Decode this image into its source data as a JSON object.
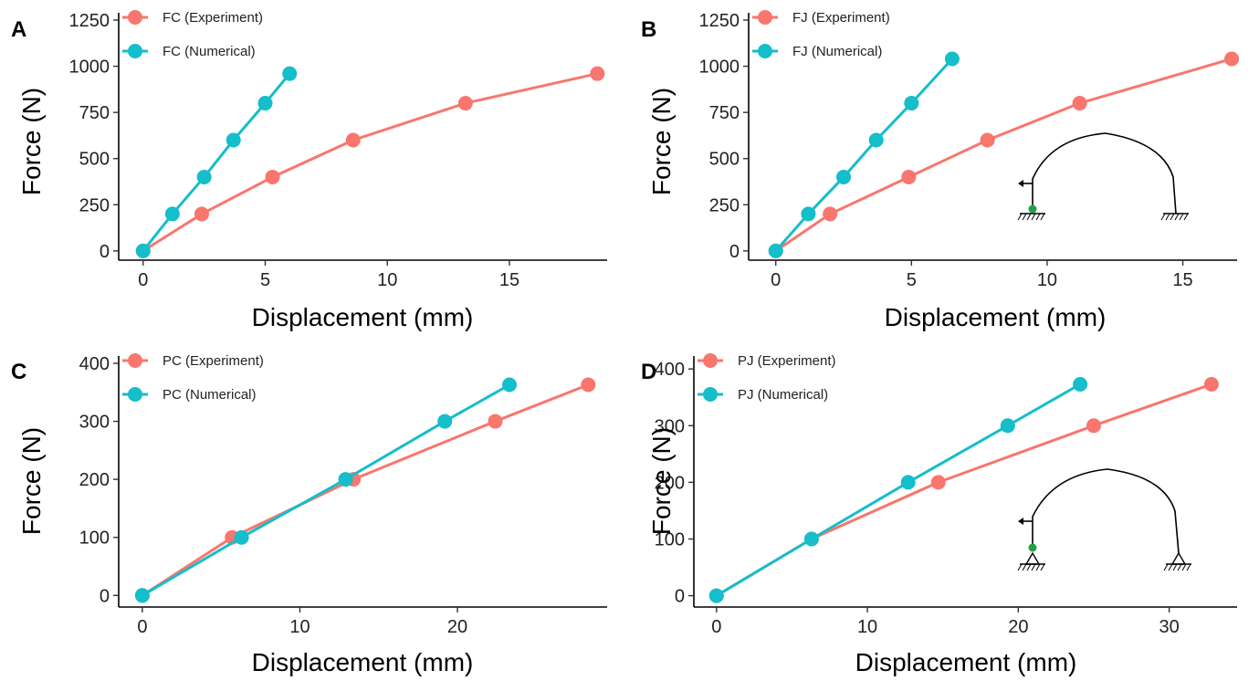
{
  "colors": {
    "experiment": "#F8766D",
    "numerical": "#14BECA",
    "axis": "#000000",
    "support_node": "#22A045"
  },
  "chart_data": [
    {
      "type": "line",
      "panel": "A",
      "xlabel": "Displacement (mm)",
      "ylabel": "Force (N)",
      "xlim": [
        -1,
        19
      ],
      "ylim": [
        -50,
        1250
      ],
      "xticks": [
        0,
        5,
        10,
        15
      ],
      "yticks": [
        0,
        250,
        500,
        750,
        1000,
        1250
      ],
      "legend_position": "top-left",
      "inset_icon": "",
      "series": [
        {
          "name": "FC (Experiment)",
          "color_key": "experiment",
          "x": [
            0,
            2.4,
            5.3,
            8.6,
            13.2,
            18.6
          ],
          "y": [
            0,
            200,
            400,
            600,
            800,
            960
          ]
        },
        {
          "name": "FC (Numerical)",
          "color_key": "numerical",
          "x": [
            0,
            1.2,
            2.5,
            3.7,
            5.0,
            6.0
          ],
          "y": [
            0,
            200,
            400,
            600,
            800,
            960
          ]
        }
      ]
    },
    {
      "type": "line",
      "panel": "B",
      "xlabel": "Displacement (mm)",
      "ylabel": "Force (N)",
      "xlim": [
        -1,
        17
      ],
      "ylim": [
        -50,
        1250
      ],
      "xticks": [
        0,
        5,
        10,
        15
      ],
      "yticks": [
        0,
        250,
        500,
        750,
        1000,
        1250
      ],
      "legend_position": "top-left",
      "inset_icon": "fixed-arch-icon",
      "series": [
        {
          "name": "FJ (Experiment)",
          "color_key": "experiment",
          "x": [
            0,
            2.0,
            4.9,
            7.8,
            11.2,
            16.8
          ],
          "y": [
            0,
            200,
            400,
            600,
            800,
            1040
          ]
        },
        {
          "name": "FJ (Numerical)",
          "color_key": "numerical",
          "x": [
            0,
            1.2,
            2.5,
            3.7,
            5.0,
            6.5
          ],
          "y": [
            0,
            200,
            400,
            600,
            800,
            1040
          ]
        }
      ]
    },
    {
      "type": "line",
      "panel": "C",
      "xlabel": "Displacement (mm)",
      "ylabel": "Force (N)",
      "xlim": [
        -1.5,
        29.5
      ],
      "ylim": [
        -20,
        400
      ],
      "xticks": [
        0,
        10,
        20
      ],
      "yticks": [
        0,
        100,
        200,
        300,
        400
      ],
      "legend_position": "top-left",
      "inset_icon": "",
      "series": [
        {
          "name": "PC (Experiment)",
          "color_key": "experiment",
          "x": [
            0,
            5.7,
            13.4,
            22.4,
            28.3
          ],
          "y": [
            0,
            100,
            200,
            300,
            363
          ]
        },
        {
          "name": "PC (Numerical)",
          "color_key": "numerical",
          "x": [
            0,
            6.3,
            12.9,
            19.2,
            23.3
          ],
          "y": [
            0,
            100,
            200,
            300,
            363
          ]
        }
      ]
    },
    {
      "type": "line",
      "panel": "D",
      "xlabel": "Displacement (mm)",
      "ylabel": "Force (N)",
      "xlim": [
        -1.5,
        34.5
      ],
      "ylim": [
        -20,
        410
      ],
      "xticks": [
        0,
        10,
        20,
        30
      ],
      "yticks": [
        0,
        100,
        200,
        300,
        400
      ],
      "legend_position": "top-left",
      "inset_icon": "pinned-arch-icon",
      "series": [
        {
          "name": "PJ (Experiment)",
          "color_key": "experiment",
          "x": [
            0,
            6.3,
            14.7,
            25.0,
            32.8
          ],
          "y": [
            0,
            100,
            200,
            300,
            373
          ]
        },
        {
          "name": "PJ (Numerical)",
          "color_key": "numerical",
          "x": [
            0,
            6.3,
            12.7,
            19.3,
            24.1
          ],
          "y": [
            0,
            100,
            200,
            300,
            373
          ]
        }
      ]
    }
  ]
}
